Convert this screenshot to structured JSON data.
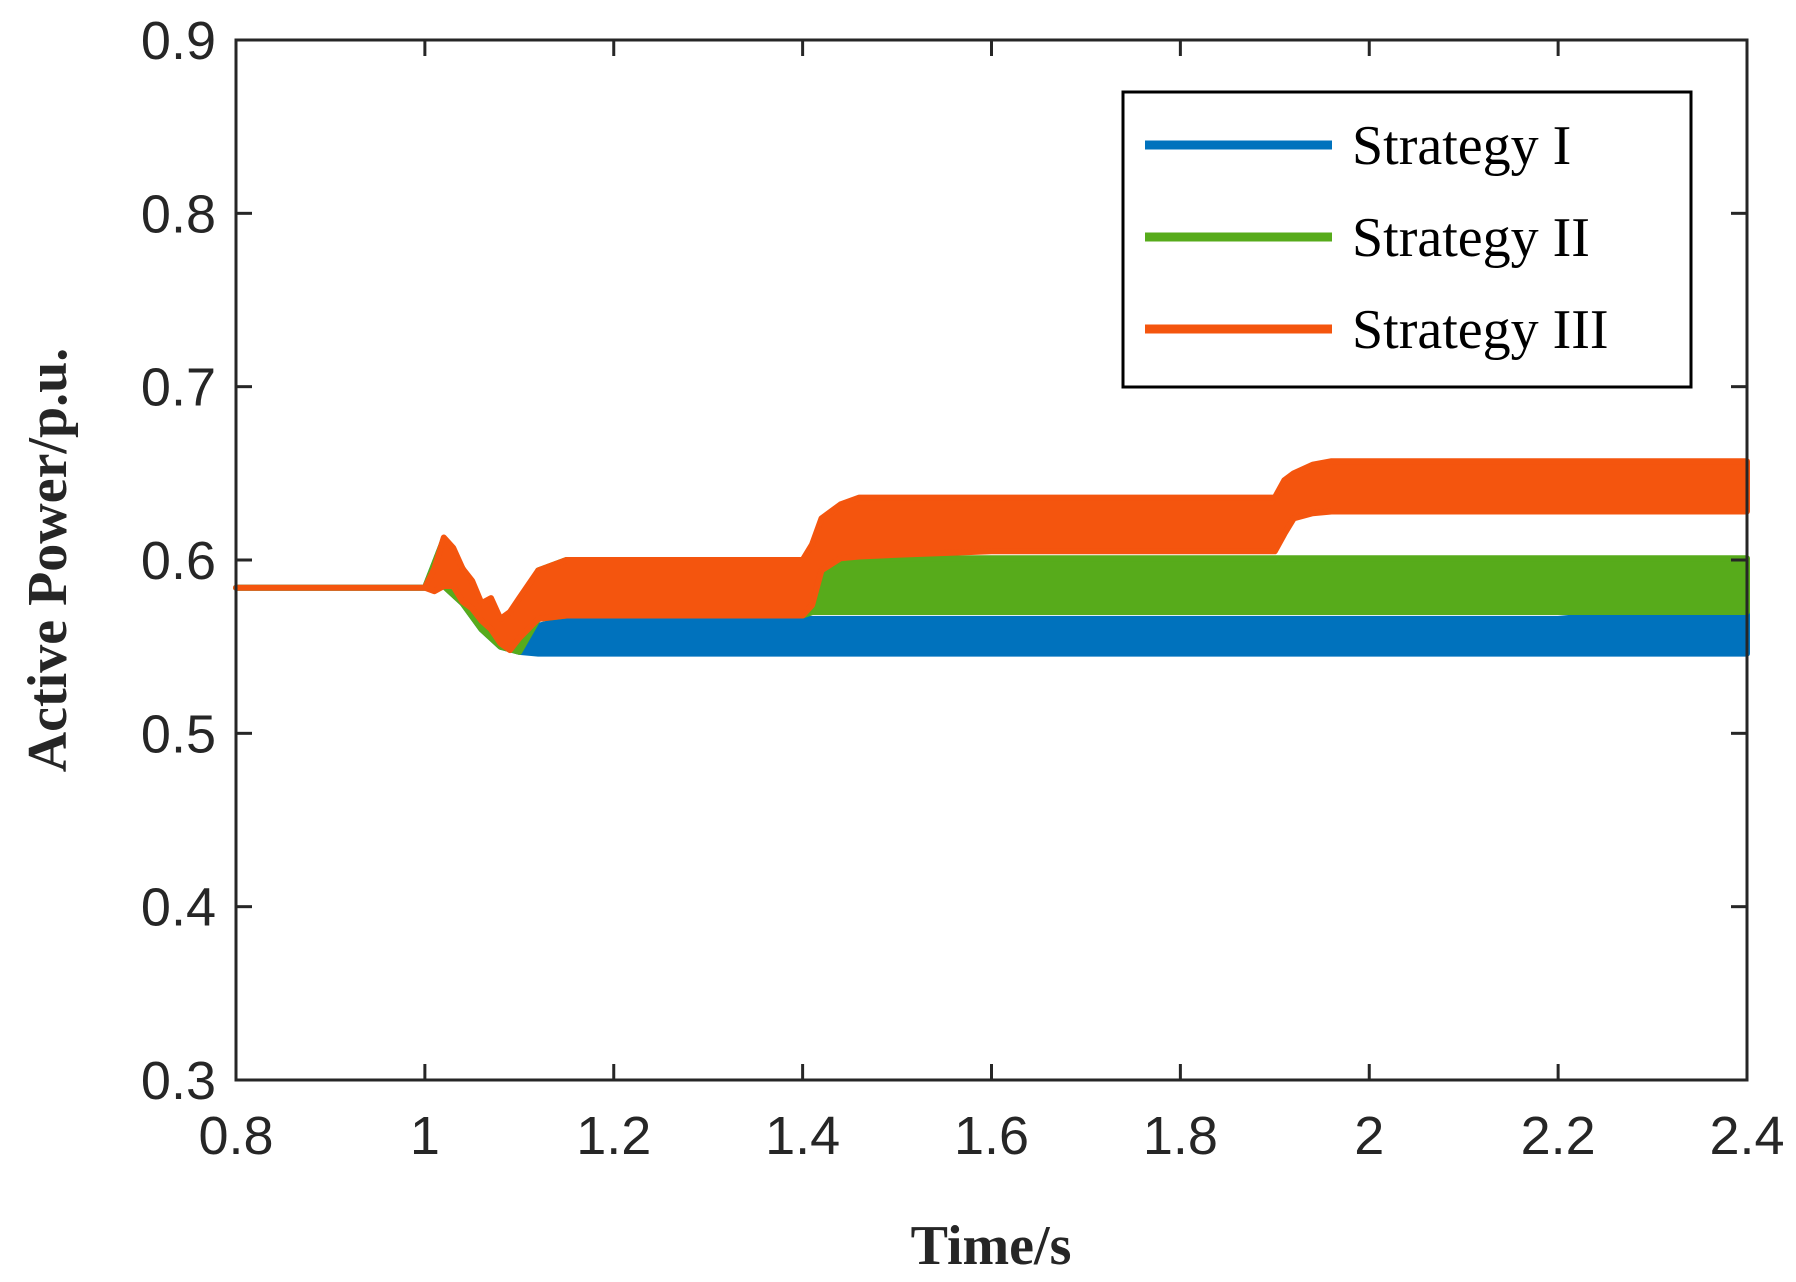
{
  "chart_data": {
    "type": "line",
    "title": "",
    "xlabel": "Time/s",
    "ylabel": "Active Power/p.u.",
    "xlim": [
      0.8,
      2.4
    ],
    "ylim": [
      0.3,
      0.9
    ],
    "xticks": [
      "0.8",
      "1",
      "1.2",
      "1.4",
      "1.6",
      "1.8",
      "2",
      "2.2",
      "2.4"
    ],
    "yticks": [
      "0.3",
      "0.4",
      "0.5",
      "0.6",
      "0.7",
      "0.8",
      "0.9"
    ],
    "grid": false,
    "legend_position": "top-right",
    "series": [
      {
        "name": "Strategy I",
        "color": "#0072BD",
        "x": [
          0.8,
          1.0,
          1.02,
          1.04,
          1.06,
          1.08,
          1.1,
          1.12,
          1.15,
          1.2,
          1.4,
          1.6,
          1.8,
          2.0,
          2.2,
          2.4
        ],
        "y_upper": [
          0.584,
          0.584,
          0.612,
          0.595,
          0.572,
          0.558,
          0.553,
          0.562,
          0.566,
          0.566,
          0.566,
          0.566,
          0.566,
          0.566,
          0.566,
          0.575
        ],
        "y_lower": [
          0.584,
          0.584,
          0.585,
          0.575,
          0.56,
          0.55,
          0.547,
          0.546,
          0.546,
          0.546,
          0.546,
          0.546,
          0.546,
          0.546,
          0.546,
          0.546
        ]
      },
      {
        "name": "Strategy II",
        "color": "#57AB1B",
        "x": [
          0.8,
          1.0,
          1.02,
          1.04,
          1.06,
          1.08,
          1.1,
          1.12,
          1.15,
          1.2,
          1.4,
          1.41,
          1.43,
          1.45,
          1.6,
          1.8,
          2.0,
          2.2,
          2.4
        ],
        "y_upper": [
          0.584,
          0.584,
          0.612,
          0.595,
          0.575,
          0.562,
          0.568,
          0.594,
          0.6,
          0.6,
          0.6,
          0.59,
          0.599,
          0.601,
          0.601,
          0.601,
          0.601,
          0.601,
          0.601
        ],
        "y_lower": [
          0.584,
          0.584,
          0.585,
          0.575,
          0.56,
          0.55,
          0.547,
          0.566,
          0.568,
          0.568,
          0.568,
          0.57,
          0.57,
          0.57,
          0.57,
          0.57,
          0.57,
          0.57,
          0.57
        ]
      },
      {
        "name": "Strategy III",
        "color": "#F4550E",
        "x": [
          0.8,
          1.0,
          1.01,
          1.02,
          1.03,
          1.04,
          1.05,
          1.06,
          1.07,
          1.08,
          1.09,
          1.1,
          1.12,
          1.15,
          1.2,
          1.4,
          1.41,
          1.42,
          1.44,
          1.46,
          1.5,
          1.6,
          1.8,
          1.9,
          1.91,
          1.92,
          1.94,
          1.96,
          2.0,
          2.2,
          2.4
        ],
        "y_upper": [
          0.584,
          0.584,
          0.595,
          0.613,
          0.607,
          0.595,
          0.588,
          0.575,
          0.578,
          0.566,
          0.57,
          0.578,
          0.594,
          0.6,
          0.6,
          0.6,
          0.609,
          0.624,
          0.632,
          0.636,
          0.636,
          0.636,
          0.636,
          0.636,
          0.646,
          0.65,
          0.655,
          0.657,
          0.657,
          0.657,
          0.657
        ],
        "y_lower": [
          0.584,
          0.584,
          0.582,
          0.585,
          0.585,
          0.576,
          0.572,
          0.565,
          0.56,
          0.552,
          0.548,
          0.555,
          0.566,
          0.568,
          0.568,
          0.568,
          0.574,
          0.594,
          0.601,
          0.602,
          0.603,
          0.605,
          0.605,
          0.605,
          0.615,
          0.624,
          0.627,
          0.628,
          0.628,
          0.628,
          0.628
        ]
      }
    ]
  }
}
